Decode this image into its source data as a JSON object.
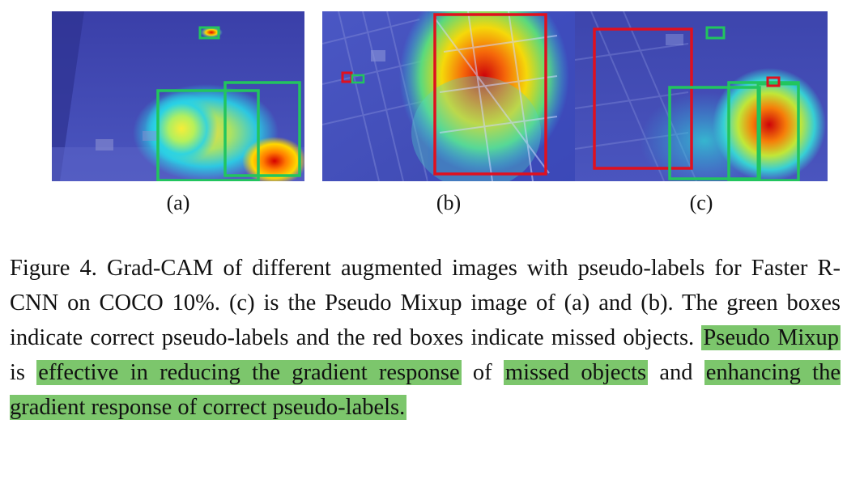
{
  "figure": {
    "panels": [
      {
        "id": "a",
        "label": "(a)"
      },
      {
        "id": "b",
        "label": "(b)"
      },
      {
        "id": "c",
        "label": "(c)"
      }
    ],
    "caption": {
      "part1": "Figure 4. Grad-CAM of different augmented images with pseudo-labels for Faster R-CNN on COCO 10%. (c) is the Pseudo Mixup image of (a) and (b).  The green boxes indicate correct pseudo-labels and the red boxes indicate missed objects. ",
      "hl1": "Pseudo Mixup",
      "part2": " is ",
      "hl2": "effective in reducing the gradient response",
      "part3": " of ",
      "hl3": "missed objects",
      "part4": " and ",
      "hl4": "enhancing the gradient response of correct pseudo-labels."
    },
    "colors": {
      "correct_box": "#22c55e",
      "missed_box": "#e0101e",
      "highlight": "#7cc66c"
    }
  }
}
